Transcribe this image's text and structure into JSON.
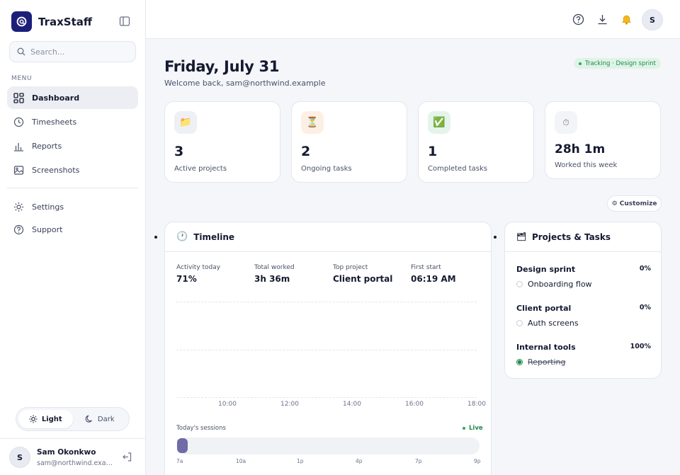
{
  "app": {
    "name": "TraxStaff"
  },
  "search": {
    "placeholder": "Search..."
  },
  "menu": {
    "label": "MENU",
    "items": [
      {
        "label": "Dashboard",
        "icon": "grid-icon",
        "active": true
      },
      {
        "label": "Timesheets",
        "icon": "clock-icon"
      },
      {
        "label": "Reports",
        "icon": "bar-chart-icon"
      },
      {
        "label": "Screenshots",
        "icon": "image-icon"
      }
    ],
    "secondary": [
      {
        "label": "Settings",
        "icon": "sun-gear-icon"
      },
      {
        "label": "Support",
        "icon": "help-icon"
      }
    ]
  },
  "theme": {
    "light": "Light",
    "dark": "Dark",
    "selected": "Light"
  },
  "user": {
    "initial": "S",
    "name": "Sam Okonkwo",
    "email": "sam@northwind.example"
  },
  "header": {
    "title": "Friday, July 31",
    "welcome": "Welcome back, sam@northwind.example",
    "tracking": "Tracking · Design sprint",
    "customize": "⚙ Customize"
  },
  "stats": [
    {
      "icon": "📁",
      "value": "3",
      "label": "Active projects",
      "bg": "#eef0f5"
    },
    {
      "icon": "⏳",
      "value": "2",
      "label": "Ongoing tasks",
      "bg": "#fdefe4"
    },
    {
      "icon": "✅",
      "value": "1",
      "label": "Completed tasks",
      "bg": "#e4f4ea"
    },
    {
      "icon": "⏱",
      "value": "28h 1m",
      "label": "Worked this week",
      "bg": "#f3f4f7"
    }
  ],
  "timeline": {
    "title": "Timeline",
    "stats": [
      {
        "label": "Activity today",
        "value": "71%"
      },
      {
        "label": "Total worked",
        "value": "3h 36m"
      },
      {
        "label": "Top project",
        "value": "Client portal"
      },
      {
        "label": "First start",
        "value": "06:19 AM"
      }
    ],
    "xticks": [
      "10:00",
      "12:00",
      "14:00",
      "16:00",
      "18:00"
    ],
    "sessions_label": "Today's sessions",
    "live": "Live",
    "hour_ticks": [
      "7a",
      "10a",
      "1p",
      "4p",
      "7p",
      "9p"
    ]
  },
  "projects": {
    "title": "Projects & Tasks",
    "items": [
      {
        "name": "Design sprint",
        "pct": "0%",
        "task": "Onboarding flow",
        "done": false
      },
      {
        "name": "Client portal",
        "pct": "0%",
        "task": "Auth screens",
        "done": false
      },
      {
        "name": "Internal tools",
        "pct": "100%",
        "task": "Reporting",
        "done": true
      }
    ]
  },
  "colors": {
    "accent": "#1c1f7a",
    "session": "#6e6ba6",
    "live": "#1f8a4c"
  }
}
